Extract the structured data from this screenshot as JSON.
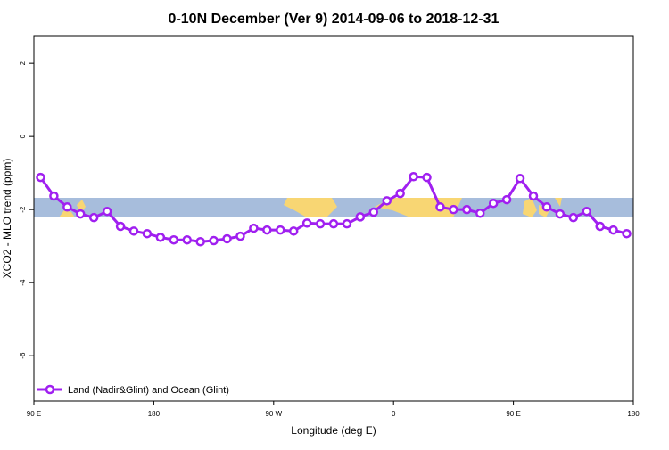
{
  "chart_data": {
    "type": "line",
    "title": "0-10N December (Ver 9)   2014-09-06 to 2018-12-31",
    "x_label": "Longitude (deg E)",
    "y_label": "XCO2 - MLO trend (ppm)",
    "x": [
      95,
      105,
      115,
      125,
      135,
      145,
      155,
      165,
      175,
      185,
      195,
      205,
      215,
      225,
      235,
      245,
      255,
      265,
      275,
      285,
      295,
      305,
      315,
      325,
      335,
      345,
      355,
      365,
      375,
      385,
      395,
      405,
      415,
      425,
      435,
      445,
      455,
      465,
      475,
      485,
      495,
      505,
      515,
      525,
      535
    ],
    "series": [
      {
        "name": "Land (Nadir&Glint) and Ocean (Glint)",
        "color": "#a020f0",
        "values": [
          -1.12,
          -1.63,
          -1.93,
          -2.12,
          -2.22,
          -2.05,
          -2.46,
          -2.59,
          -2.66,
          -2.76,
          -2.83,
          -2.83,
          -2.88,
          -2.85,
          -2.8,
          -2.73,
          -2.51,
          -2.56,
          -2.56,
          -2.59,
          -2.37,
          -2.39,
          -2.39,
          -2.39,
          -2.2,
          -2.07,
          -1.76,
          -1.56,
          -1.1,
          -1.12,
          -1.93,
          -2.0,
          -2.0,
          -2.1,
          -1.83,
          -1.73,
          -1.15,
          -1.63,
          -1.93,
          -2.12,
          -2.22,
          -2.05,
          -2.46,
          -2.56,
          -2.66
        ]
      }
    ],
    "xlim": [
      90,
      540
    ],
    "xticks": [
      {
        "value": 90,
        "label": "90 E"
      },
      180,
      {
        "value": 270,
        "label": "90 W"
      },
      {
        "value": 360,
        "label": "0"
      },
      {
        "value": 450,
        "label": "90 E"
      },
      {
        "value": 540,
        "label": "180"
      }
    ],
    "ylim": [
      -7.24,
      2.76
    ],
    "yticks": [
      2,
      0,
      -2,
      -4,
      -6
    ],
    "legend": "bottom-left"
  }
}
